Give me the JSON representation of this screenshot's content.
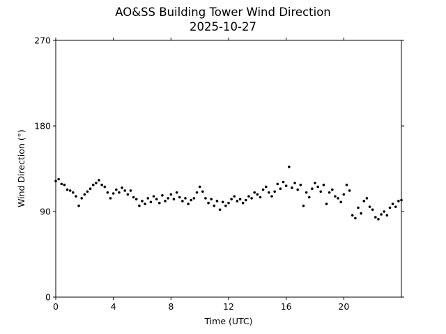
{
  "chart_data": {
    "type": "scatter",
    "title": "AO&SS Building Tower Wind Direction",
    "subtitle": "2025-10-27",
    "xlabel": "Time (UTC)",
    "ylabel": "Wind Direction (°)",
    "xlim": [
      0,
      24
    ],
    "ylim": [
      0,
      270
    ],
    "xticks": [
      0,
      4,
      8,
      12,
      16,
      20
    ],
    "xtick_labels": [
      "0",
      "4",
      "8",
      "12",
      "16",
      "20"
    ],
    "yticks": [
      0,
      90,
      180,
      270
    ],
    "ytick_labels": [
      "0",
      "90",
      "180",
      "270"
    ],
    "grid": false,
    "marker_color": "#000000",
    "points": [
      [
        0.0,
        122
      ],
      [
        0.2,
        124
      ],
      [
        0.4,
        119
      ],
      [
        0.6,
        118
      ],
      [
        0.8,
        113
      ],
      [
        1.0,
        112
      ],
      [
        1.2,
        110
      ],
      [
        1.4,
        106
      ],
      [
        1.6,
        96
      ],
      [
        1.8,
        104
      ],
      [
        2.0,
        108
      ],
      [
        2.2,
        111
      ],
      [
        2.4,
        114
      ],
      [
        2.6,
        118
      ],
      [
        2.8,
        120
      ],
      [
        3.0,
        123
      ],
      [
        3.2,
        118
      ],
      [
        3.4,
        116
      ],
      [
        3.6,
        110
      ],
      [
        3.8,
        104
      ],
      [
        4.0,
        109
      ],
      [
        4.2,
        113
      ],
      [
        4.4,
        110
      ],
      [
        4.6,
        115
      ],
      [
        4.8,
        112
      ],
      [
        5.0,
        108
      ],
      [
        5.2,
        112
      ],
      [
        5.4,
        105
      ],
      [
        5.6,
        103
      ],
      [
        5.8,
        96
      ],
      [
        6.0,
        101
      ],
      [
        6.2,
        98
      ],
      [
        6.4,
        104
      ],
      [
        6.6,
        100
      ],
      [
        6.8,
        106
      ],
      [
        7.0,
        103
      ],
      [
        7.2,
        99
      ],
      [
        7.4,
        107
      ],
      [
        7.6,
        101
      ],
      [
        7.8,
        104
      ],
      [
        8.0,
        108
      ],
      [
        8.2,
        103
      ],
      [
        8.4,
        110
      ],
      [
        8.6,
        105
      ],
      [
        8.8,
        101
      ],
      [
        9.0,
        104
      ],
      [
        9.2,
        98
      ],
      [
        9.4,
        102
      ],
      [
        9.6,
        104
      ],
      [
        9.8,
        110
      ],
      [
        10.0,
        116
      ],
      [
        10.2,
        111
      ],
      [
        10.4,
        104
      ],
      [
        10.6,
        99
      ],
      [
        10.8,
        103
      ],
      [
        11.0,
        96
      ],
      [
        11.2,
        101
      ],
      [
        11.4,
        92
      ],
      [
        11.6,
        100
      ],
      [
        11.8,
        96
      ],
      [
        12.0,
        99
      ],
      [
        12.2,
        103
      ],
      [
        12.4,
        106
      ],
      [
        12.6,
        101
      ],
      [
        12.8,
        103
      ],
      [
        13.0,
        99
      ],
      [
        13.2,
        102
      ],
      [
        13.4,
        106
      ],
      [
        13.6,
        104
      ],
      [
        13.8,
        110
      ],
      [
        14.0,
        108
      ],
      [
        14.2,
        105
      ],
      [
        14.4,
        113
      ],
      [
        14.6,
        116
      ],
      [
        14.8,
        110
      ],
      [
        15.0,
        106
      ],
      [
        15.2,
        111
      ],
      [
        15.4,
        119
      ],
      [
        15.6,
        114
      ],
      [
        15.8,
        121
      ],
      [
        16.0,
        117
      ],
      [
        16.2,
        137
      ],
      [
        16.4,
        115
      ],
      [
        16.6,
        120
      ],
      [
        16.8,
        113
      ],
      [
        17.0,
        118
      ],
      [
        17.2,
        96
      ],
      [
        17.4,
        110
      ],
      [
        17.6,
        105
      ],
      [
        17.8,
        114
      ],
      [
        18.0,
        120
      ],
      [
        18.2,
        116
      ],
      [
        18.4,
        111
      ],
      [
        18.6,
        118
      ],
      [
        18.8,
        98
      ],
      [
        19.0,
        110
      ],
      [
        19.2,
        113
      ],
      [
        19.4,
        106
      ],
      [
        19.6,
        104
      ],
      [
        19.8,
        100
      ],
      [
        20.0,
        108
      ],
      [
        20.2,
        118
      ],
      [
        20.4,
        112
      ],
      [
        20.6,
        86
      ],
      [
        20.8,
        83
      ],
      [
        21.0,
        94
      ],
      [
        21.2,
        88
      ],
      [
        21.4,
        101
      ],
      [
        21.6,
        104
      ],
      [
        21.8,
        95
      ],
      [
        22.0,
        92
      ],
      [
        22.2,
        84
      ],
      [
        22.4,
        82
      ],
      [
        22.6,
        87
      ],
      [
        22.8,
        90
      ],
      [
        23.0,
        86
      ],
      [
        23.2,
        94
      ],
      [
        23.4,
        98
      ],
      [
        23.6,
        95
      ],
      [
        23.8,
        101
      ],
      [
        24.0,
        102
      ]
    ]
  }
}
